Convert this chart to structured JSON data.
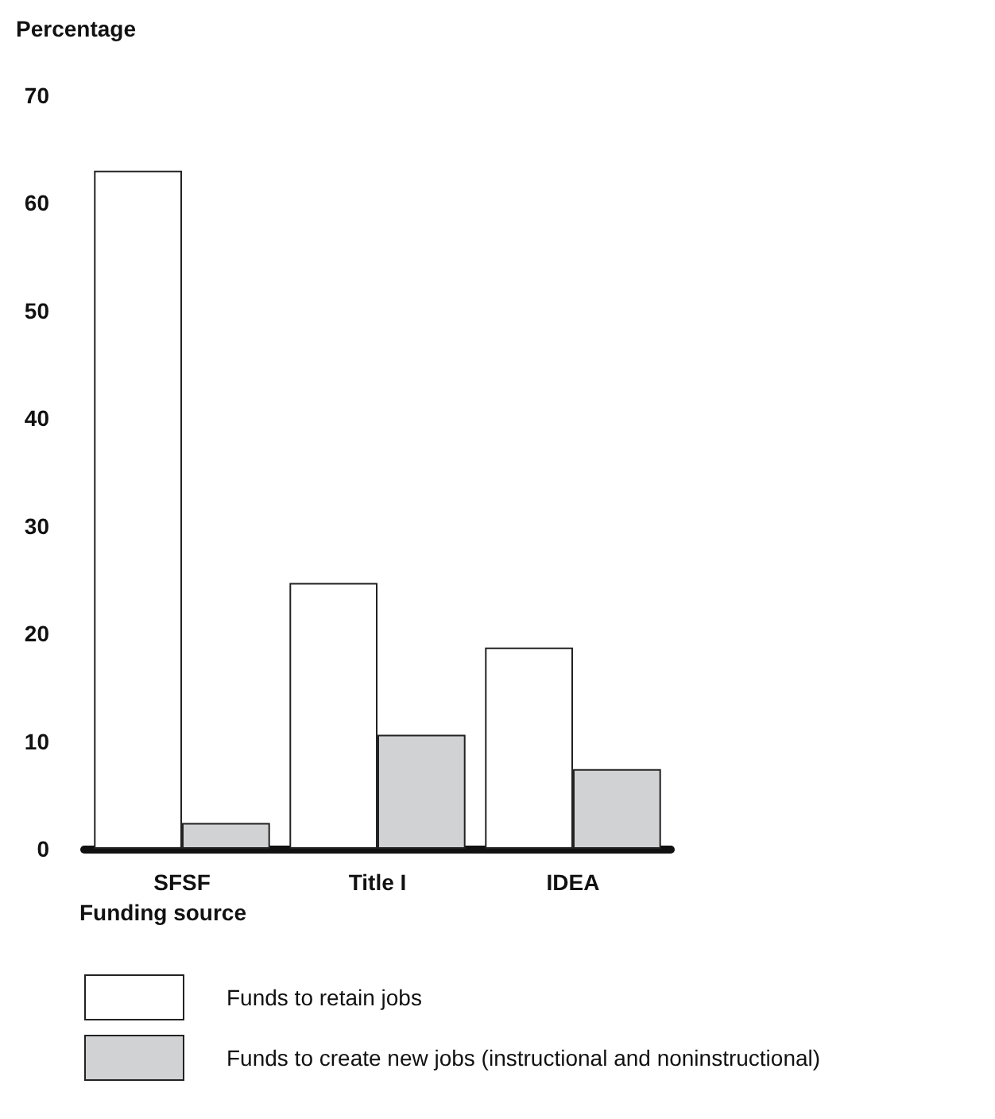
{
  "chart_data": {
    "type": "bar",
    "ylabel": "Percentage",
    "xlabel": "Funding source",
    "categories": [
      "SFSF",
      "Title I",
      "IDEA"
    ],
    "series": [
      {
        "name": "Funds to retain jobs",
        "color": "#ffffff",
        "values": [
          63,
          24.7,
          18.7
        ]
      },
      {
        "name": "Funds to create new jobs (instructional and noninstructional)",
        "color": "#d1d2d4",
        "values": [
          2.4,
          10.6,
          7.4
        ]
      }
    ],
    "ylim": [
      0,
      70
    ],
    "yticks": [
      0,
      10,
      20,
      30,
      40,
      50,
      60,
      70
    ],
    "grid": false,
    "legend": "bottom"
  }
}
